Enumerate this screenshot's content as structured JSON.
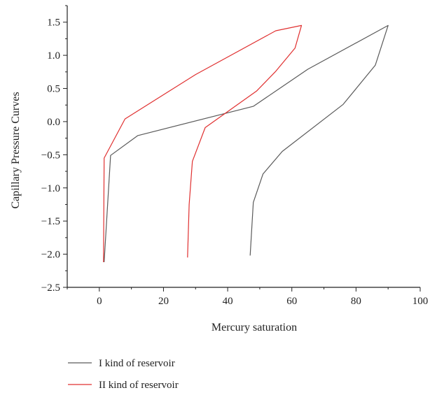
{
  "chart_data": {
    "type": "line",
    "title": "",
    "xlabel": "Mercury saturation",
    "ylabel": "Capillary Pressure Curves",
    "xlim": [
      -10,
      100
    ],
    "ylim": [
      -2.5,
      1.75
    ],
    "x_ticks": [
      "0",
      "20",
      "40",
      "60",
      "80",
      "100"
    ],
    "y_ticks": [
      "1.5",
      "1.0",
      "0.5",
      "0.0",
      "−0.5",
      "−1.0",
      "−1.5",
      "−2.0",
      "−2.5"
    ],
    "grid": false,
    "legend_position": "bottom-left",
    "series": [
      {
        "name": "I kind of reservoir",
        "color": "#5a5a5a",
        "points": [
          [
            1.5,
            -2.12
          ],
          [
            3.5,
            -0.51
          ],
          [
            12,
            -0.21
          ],
          [
            48,
            0.23
          ],
          [
            65,
            0.79
          ],
          [
            90,
            1.45
          ],
          [
            86,
            0.85
          ],
          [
            76,
            0.26
          ],
          [
            57,
            -0.45
          ],
          [
            51,
            -0.79
          ],
          [
            48,
            -1.22
          ],
          [
            47,
            -2.02
          ]
        ]
      },
      {
        "name": "II kind of reservoir",
        "color": "#e03030",
        "points": [
          [
            1.3,
            -2.12
          ],
          [
            1.5,
            -0.55
          ],
          [
            8,
            0.04
          ],
          [
            30,
            0.71
          ],
          [
            55,
            1.37
          ],
          [
            63,
            1.45
          ],
          [
            61,
            1.11
          ],
          [
            55,
            0.76
          ],
          [
            49,
            0.46
          ],
          [
            33,
            -0.09
          ],
          [
            29,
            -0.6
          ],
          [
            28,
            -1.25
          ],
          [
            27.5,
            -2.05
          ]
        ]
      }
    ]
  }
}
